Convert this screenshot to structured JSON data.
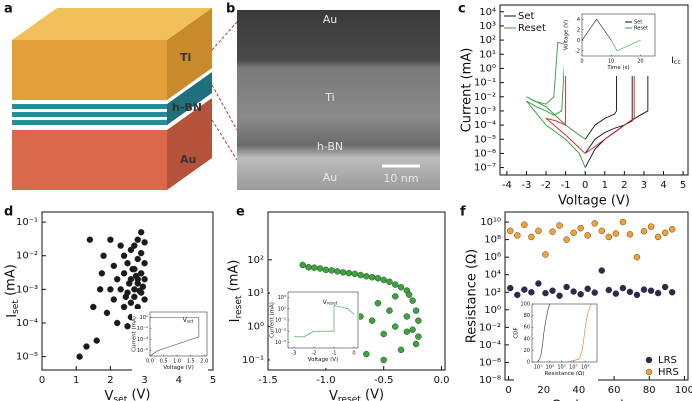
{
  "panels": {
    "a": {
      "letter": "a",
      "labels": [
        "Ti",
        "h-BN",
        "Au"
      ]
    },
    "b": {
      "letter": "b",
      "labels": [
        "Au",
        "Ti",
        "h-BN",
        "Au"
      ],
      "scale_bar": "10 nm"
    },
    "letters": [
      "c",
      "d",
      "e",
      "f"
    ]
  },
  "chart_data": [
    {
      "type": "line",
      "xlabel": "Voltage (V)",
      "ylabel": "Current (mA)",
      "yscale": "log",
      "xlim": [
        -4.35,
        5.25
      ],
      "xticks": [
        -4,
        -3,
        -2,
        -1,
        0,
        1,
        2,
        3,
        4,
        5
      ],
      "ylim": [
        3e-08,
        30000
      ],
      "yticks": [
        {
          "value": 10000,
          "label": "10⁴"
        },
        {
          "value": 1000,
          "label": "10³"
        },
        {
          "value": 100,
          "label": "10²"
        },
        {
          "value": 10,
          "label": "10¹"
        },
        {
          "value": 1,
          "label": "10⁰"
        },
        {
          "value": 0.1,
          "label": "10⁻¹"
        },
        {
          "value": 0.01,
          "label": "10⁻²"
        },
        {
          "value": 0.001,
          "label": "10⁻³"
        },
        {
          "value": 0.0001,
          "label": "10⁻⁴"
        },
        {
          "value": 1e-05,
          "label": "10⁻⁵"
        },
        {
          "value": 1e-06,
          "label": "10⁻⁶"
        },
        {
          "value": 1e-07,
          "label": "10⁻⁷"
        }
      ],
      "legend": "upper left",
      "annotation": {
        "text": "I",
        "sub": "cc"
      },
      "series": [
        {
          "name": "Set",
          "color": "#111111",
          "x": [
            0,
            0.5,
            1,
            1.5,
            2,
            2.4,
            2.4,
            2,
            1,
            0.5,
            0.1
          ],
          "values": [
            1e-06,
            1e-05,
            3e-05,
            6e-05,
            0.0001,
            0.0002,
            10,
            10,
            8,
            5,
            2
          ]
        },
        {
          "color": "#111111",
          "x": [
            0,
            0.5,
            1,
            1.5,
            1.6,
            1.6,
            1,
            0.5,
            0.1
          ],
          "values": [
            1e-05,
            0.0001,
            0.0003,
            0.0006,
            0.001,
            10,
            9,
            6,
            3
          ]
        },
        {
          "color": "#111111",
          "x": [
            0,
            0.5,
            1,
            2,
            2.8,
            3.2,
            3.2,
            2,
            1,
            0.1
          ],
          "values": [
            1e-07,
            2e-06,
            1e-05,
            0.0001,
            0.0005,
            0.001,
            10,
            10,
            8,
            2
          ]
        },
        {
          "name": "Reset",
          "color": "#2e9e3e",
          "x": [
            0,
            -0.3,
            -0.6,
            -0.9,
            -1.0,
            -1.2,
            -1.6,
            -2,
            -2.5,
            -3,
            -2,
            -1,
            -0.3,
            0
          ],
          "values": [
            1,
            10,
            30,
            50,
            60,
            0.001,
            0.0005,
            0.001,
            0.002,
            0.005,
            0.0001,
            1e-05,
            1e-06,
            1e-07
          ]
        },
        {
          "color": "#2e9e3e",
          "x": [
            0,
            -0.4,
            -0.8,
            -1.4,
            -1.6,
            -2,
            -2.6,
            -3,
            -2,
            -1,
            0
          ],
          "values": [
            2,
            20,
            40,
            70,
            0.01,
            0.003,
            0.005,
            0.01,
            0.002,
            0.0001,
            1e-05
          ]
        },
        {
          "color": "#d42020",
          "x": [
            0,
            0.5,
            1,
            1.5,
            2,
            2.5,
            2.5,
            1.5,
            0.5,
            0,
            -0.5,
            -1,
            -1,
            -1.5,
            -2,
            -1,
            0
          ],
          "values": [
            1e-06,
            3e-06,
            1e-05,
            3e-05,
            0.0001,
            0.0003,
            10,
            10,
            8,
            3,
            20,
            40,
            0.0001,
            0.0002,
            0.0003,
            2e-05,
            1e-06
          ]
        }
      ]
    },
    {
      "type": "line",
      "xlabel": "Time (s)",
      "ylabel": "Voltage (V)",
      "xlim": [
        0,
        25
      ],
      "xticks": [
        0,
        10,
        20
      ],
      "ylim": [
        -3,
        5
      ],
      "yticks": [
        -2,
        0,
        2,
        4
      ],
      "legend": "upper right",
      "series": [
        {
          "name": "Set",
          "color": "#111111",
          "x": [
            0,
            5,
            10
          ],
          "values": [
            0,
            4,
            0
          ]
        },
        {
          "name": "Reset",
          "color": "#2e9e3e",
          "x": [
            10,
            12,
            20
          ],
          "values": [
            0,
            -2,
            0
          ]
        }
      ]
    },
    {
      "type": "scatter",
      "xlabel": {
        "text": "V",
        "sub": "set",
        "unit": " (V)"
      },
      "ylabel": {
        "text": "I",
        "sub": "set",
        "unit": " (mA)"
      },
      "yscale": "log",
      "xlim": [
        0,
        5
      ],
      "xticks": [
        0,
        1,
        2,
        3,
        4,
        5
      ],
      "ylim": [
        4e-06,
        0.2
      ],
      "yticks": [
        {
          "value": 0.1,
          "label": "10⁻¹"
        },
        {
          "value": 0.01,
          "label": "10⁻²"
        },
        {
          "value": 0.001,
          "label": "10⁻³"
        },
        {
          "value": 0.0001,
          "label": "10⁻⁴"
        },
        {
          "value": 1e-05,
          "label": "10⁻⁵"
        }
      ],
      "series": [
        {
          "color": "#1a1a1a",
          "x": [
            1.1,
            1.4,
            1.5,
            1.6,
            1.7,
            1.8,
            1.9,
            2.0,
            2.0,
            2.1,
            2.1,
            2.2,
            2.2,
            2.3,
            2.3,
            2.4,
            2.4,
            2.4,
            2.5,
            2.5,
            2.5,
            2.6,
            2.6,
            2.6,
            2.6,
            2.7,
            2.7,
            2.7,
            2.7,
            2.8,
            2.8,
            2.8,
            2.8,
            2.8,
            2.9,
            2.9,
            2.9,
            2.9,
            3.0,
            3.0,
            3.0,
            3.0,
            2.95,
            2.85,
            2.75,
            2.65,
            2.55,
            2.45,
            1.3,
            1.75
          ],
          "values": [
            1e-05,
            0.03,
            0.0003,
            3e-05,
            0.001,
            0.01,
            0.0002,
            0.001,
            0.03,
            0.0005,
            0.005,
            0.0001,
            0.002,
            0.001,
            0.02,
            0.0003,
            0.003,
            0.01,
            8e-05,
            0.0008,
            0.006,
            0.0004,
            0.002,
            0.015,
            0.00015,
            0.001,
            0.004,
            0.02,
            0.0006,
            0.0003,
            0.0015,
            0.008,
            0.03,
            0.002,
            0.0008,
            0.003,
            0.012,
            0.05,
            0.0005,
            0.002,
            0.006,
            0.025,
            0.0012,
            0.0009,
            0.0025,
            0.004,
            0.0015,
            0.0006,
            2e-05,
            0.003
          ]
        }
      ]
    },
    {
      "type": "line",
      "xlabel": "Voltage (V)",
      "ylabel": "Current (mA)",
      "yscale": "log",
      "xlim": [
        0,
        2.1
      ],
      "xticks": [
        {
          "value": 0,
          "label": "0.0"
        },
        0.5,
        {
          "value": 1,
          "label": "1.0"
        },
        1.5,
        {
          "value": 2,
          "label": "2.0"
        }
      ],
      "ylim": [
        1e-06,
        100
      ],
      "yticks": [
        {
          "value": 1e-05,
          "label": "10⁻⁵"
        },
        {
          "value": 0.001,
          "label": "10⁻³"
        },
        {
          "value": 0.1,
          "label": "10⁻¹"
        },
        {
          "value": 10,
          "label": "10¹"
        }
      ],
      "annotation": {
        "text": "V",
        "sub": "set"
      },
      "series": [
        {
          "color": "#444444",
          "x": [
            0,
            0.3,
            0.6,
            0.9,
            1.2,
            1.5,
            1.8,
            1.8,
            1.2,
            0.6,
            0
          ],
          "values": [
            1e-06,
            1e-05,
            3e-05,
            0.0001,
            0.0003,
            0.001,
            0.003,
            10,
            10,
            10,
            10
          ]
        }
      ]
    },
    {
      "type": "scatter",
      "xlabel": {
        "text": "V",
        "sub": "reset",
        "unit": " (V)"
      },
      "ylabel": {
        "text": "I",
        "sub": "reset",
        "unit": " (mA)"
      },
      "yscale": "log",
      "xlim": [
        -1.5,
        0.03
      ],
      "xticks": [
        -1.5,
        {
          "value": -1,
          "label": "-1.0"
        },
        -0.5,
        {
          "value": 0,
          "label": "0.0"
        }
      ],
      "ylim": [
        0.05,
        2700
      ],
      "yticks": [
        {
          "value": 100,
          "label": "10²"
        },
        {
          "value": 10,
          "label": "10¹"
        },
        {
          "value": 1,
          "label": "10⁰"
        },
        {
          "value": 0.1,
          "label": "10⁻¹"
        }
      ],
      "series": [
        {
          "color": "#3aa53a",
          "x": [
            -1.2,
            -1.15,
            -1.1,
            -1.05,
            -1.0,
            -0.95,
            -0.9,
            -0.85,
            -0.8,
            -0.75,
            -0.7,
            -0.65,
            -0.6,
            -0.55,
            -0.5,
            -0.45,
            -0.4,
            -0.35,
            -0.3,
            -0.28,
            -0.25,
            -0.22,
            -0.2,
            -0.2,
            -0.22,
            -0.25,
            -0.3,
            -0.35,
            -0.4,
            -0.45,
            -0.5,
            -0.55,
            -0.6,
            -0.65,
            -0.7,
            -0.75,
            -0.8,
            -0.5,
            -0.4,
            -0.3
          ],
          "values": [
            70,
            60,
            58,
            55,
            50,
            48,
            45,
            42,
            40,
            38,
            35,
            32,
            30,
            28,
            25,
            22,
            18,
            15,
            12,
            9,
            6,
            3,
            1.5,
            0.5,
            0.3,
            0.8,
            2,
            0.2,
            1,
            3,
            0.6,
            5,
            1.5,
            0.15,
            2,
            0.4,
            3,
            0.1,
            8,
            0.7
          ]
        }
      ]
    },
    {
      "type": "line",
      "xlabel": "Voltage (V)",
      "ylabel": "Current (mA)",
      "yscale": "log",
      "xlim": [
        -3.3,
        0.2
      ],
      "xticks": [
        -3,
        -2,
        -1,
        0
      ],
      "ylim": [
        1e-06,
        10000
      ],
      "yticks": [
        {
          "value": 1e-05,
          "label": "10⁻⁵"
        },
        {
          "value": 0.001,
          "label": "10⁻³"
        },
        {
          "value": 0.1,
          "label": "10⁻¹"
        },
        {
          "value": 10,
          "label": "10¹"
        },
        {
          "value": 1000,
          "label": "10³"
        }
      ],
      "annotation": {
        "text": "V",
        "sub": "reset"
      },
      "series": [
        {
          "color": "#2e9e3e",
          "x": [
            0,
            -0.3,
            -0.6,
            -0.9,
            -1.0,
            -1.0,
            -1.5,
            -2,
            -2.5,
            -3
          ],
          "values": [
            1,
            10,
            20,
            30,
            40,
            0.001,
            0.001,
            0.001,
            0.0001,
            0.0001
          ]
        }
      ]
    },
    {
      "type": "scatter",
      "xlabel": "Cycle number",
      "ylabel": "Resistance (Ω)",
      "yscale": "log",
      "xlim": [
        -2,
        102
      ],
      "xticks": [
        0,
        20,
        40,
        60,
        80,
        100
      ],
      "ylim": [
        1e-08,
        140000000000
      ],
      "yticks": [
        {
          "value": 10000000000,
          "label": "10¹⁰"
        },
        {
          "value": 100000000,
          "label": "10⁸"
        },
        {
          "value": 1000000,
          "label": "10⁶"
        },
        {
          "value": 10000,
          "label": "10⁴"
        },
        {
          "value": 100,
          "label": "10²"
        },
        {
          "value": 1,
          "label": "10⁰"
        },
        {
          "value": 0.01,
          "label": "10⁻²"
        },
        {
          "value": 0.0001,
          "label": "10⁻⁴"
        },
        {
          "value": 1e-06,
          "label": "10⁻⁶"
        },
        {
          "value": 1e-08,
          "label": "10⁻⁸"
        }
      ],
      "legend": "lower right",
      "series": [
        {
          "name": "LRS",
          "color": "#2a2a50",
          "x": [
            1,
            5,
            9,
            13,
            17,
            21,
            25,
            29,
            33,
            37,
            41,
            45,
            49,
            53,
            57,
            61,
            65,
            69,
            73,
            77,
            81,
            85,
            89,
            93
          ],
          "values": [
            300,
            50,
            200,
            100,
            1000,
            80,
            150,
            40,
            400,
            120,
            60,
            250,
            90,
            30000,
            180,
            70,
            300,
            110,
            50,
            200,
            150,
            80,
            400,
            100
          ]
        },
        {
          "name": "HRS",
          "color": "#f5a030",
          "x": [
            1,
            5,
            9,
            13,
            17,
            21,
            25,
            29,
            33,
            37,
            41,
            45,
            49,
            53,
            57,
            61,
            65,
            69,
            73,
            77,
            81,
            85,
            89,
            93
          ],
          "values": [
            1000000000,
            300000000,
            5000000000,
            200000000,
            1000000000,
            2000000,
            800000000,
            4000000000,
            100000000,
            600000000,
            2000000000,
            300000000,
            7000000000,
            1000000000,
            200000000,
            500000000,
            10000000000,
            400000000,
            1000000,
            900000000,
            3000000000,
            200000000,
            600000000,
            1500000000
          ]
        }
      ]
    },
    {
      "type": "line",
      "xlabel": "Resistance (Ω)",
      "ylabel": "CDF",
      "xscale": "log",
      "xlim": [
        1,
        100000000000
      ],
      "xticks": [
        {
          "value": 10,
          "label": "10¹"
        },
        {
          "value": 1000,
          "label": "10³"
        },
        {
          "value": 100000,
          "label": "10⁵"
        },
        {
          "value": 10000000,
          "label": "10⁷"
        },
        {
          "value": 1000000000,
          "label": "10⁹"
        }
      ],
      "ylim": [
        0,
        100
      ],
      "yticks": [
        0,
        20,
        40,
        60,
        80,
        100
      ],
      "series": [
        {
          "color": "#2a2a50",
          "x": [
            10,
            30,
            60,
            100,
            200,
            500,
            1000
          ],
          "values": [
            0,
            10,
            30,
            50,
            70,
            90,
            100
          ]
        },
        {
          "color": "#f07020",
          "x": [
            1000000,
            100000000,
            300000000,
            600000000,
            1000000000,
            3000000000,
            10000000000
          ],
          "values": [
            0,
            5,
            20,
            40,
            60,
            85,
            100
          ]
        }
      ]
    }
  ]
}
